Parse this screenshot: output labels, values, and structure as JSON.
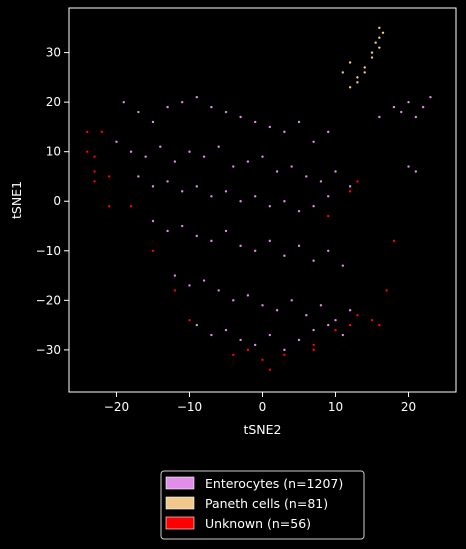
{
  "chart_data": {
    "type": "scatter",
    "xlabel": "tSNE2",
    "ylabel": "tSNE1",
    "xlim": [
      -26.5,
      26.5
    ],
    "ylim": [
      -38.5,
      39
    ],
    "x_ticks": [
      -20,
      -10,
      0,
      10,
      20
    ],
    "y_ticks": [
      -30,
      -20,
      -10,
      0,
      10,
      20,
      30
    ],
    "x_tick_labels": [
      "−20",
      "−10",
      "0",
      "10",
      "20"
    ],
    "y_tick_labels": [
      "−30",
      "−20",
      "−10",
      "0",
      "10",
      "20",
      "30"
    ],
    "grid": false,
    "legend_position": "below",
    "series": [
      {
        "name": "Enterocytes (n=1207)",
        "color": "#e08fe8",
        "count": 1207,
        "points": [
          [
            -19,
            20
          ],
          [
            -17,
            18
          ],
          [
            -15,
            16
          ],
          [
            -13,
            19
          ],
          [
            -11,
            20
          ],
          [
            -9,
            21
          ],
          [
            -7,
            19
          ],
          [
            -5,
            18
          ],
          [
            -3,
            17
          ],
          [
            -1,
            16
          ],
          [
            1,
            15
          ],
          [
            3,
            14
          ],
          [
            5,
            16
          ],
          [
            7,
            12
          ],
          [
            9,
            14
          ],
          [
            -20,
            12
          ],
          [
            -18,
            10
          ],
          [
            -16,
            9
          ],
          [
            -14,
            11
          ],
          [
            -12,
            8
          ],
          [
            -10,
            10
          ],
          [
            -8,
            9
          ],
          [
            -6,
            11
          ],
          [
            -4,
            7
          ],
          [
            -2,
            8
          ],
          [
            0,
            9
          ],
          [
            2,
            6
          ],
          [
            4,
            7
          ],
          [
            6,
            5
          ],
          [
            8,
            4
          ],
          [
            10,
            6
          ],
          [
            12,
            3
          ],
          [
            -17,
            5
          ],
          [
            -15,
            3
          ],
          [
            -13,
            4
          ],
          [
            -11,
            2
          ],
          [
            -9,
            3
          ],
          [
            -7,
            1
          ],
          [
            -5,
            2
          ],
          [
            -3,
            0
          ],
          [
            -1,
            1
          ],
          [
            1,
            -1
          ],
          [
            3,
            0
          ],
          [
            5,
            -2
          ],
          [
            7,
            -1
          ],
          [
            9,
            1
          ],
          [
            -15,
            -4
          ],
          [
            -13,
            -6
          ],
          [
            -11,
            -5
          ],
          [
            -9,
            -7
          ],
          [
            -7,
            -8
          ],
          [
            -5,
            -6
          ],
          [
            -3,
            -9
          ],
          [
            -1,
            -10
          ],
          [
            1,
            -8
          ],
          [
            3,
            -11
          ],
          [
            5,
            -9
          ],
          [
            7,
            -12
          ],
          [
            9,
            -10
          ],
          [
            11,
            -13
          ],
          [
            -12,
            -15
          ],
          [
            -10,
            -17
          ],
          [
            -8,
            -16
          ],
          [
            -6,
            -18
          ],
          [
            -4,
            -20
          ],
          [
            -2,
            -19
          ],
          [
            0,
            -21
          ],
          [
            2,
            -22
          ],
          [
            4,
            -20
          ],
          [
            6,
            -23
          ],
          [
            8,
            -21
          ],
          [
            10,
            -24
          ],
          [
            12,
            -22
          ],
          [
            -9,
            -25
          ],
          [
            -7,
            -27
          ],
          [
            -5,
            -26
          ],
          [
            -3,
            -28
          ],
          [
            -1,
            -29
          ],
          [
            1,
            -27
          ],
          [
            3,
            -30
          ],
          [
            5,
            -28
          ],
          [
            7,
            -26
          ],
          [
            9,
            -25
          ],
          [
            11,
            -27
          ],
          [
            16,
            17
          ],
          [
            18,
            19
          ],
          [
            20,
            20
          ],
          [
            22,
            19
          ],
          [
            23,
            21
          ],
          [
            19,
            18
          ],
          [
            21,
            17
          ],
          [
            20,
            7
          ],
          [
            21,
            6
          ]
        ]
      },
      {
        "name": "Paneth cells (n=81)",
        "color": "#f0c88c",
        "count": 81,
        "points": [
          [
            11,
            26
          ],
          [
            12,
            28
          ],
          [
            13,
            25
          ],
          [
            14,
            27
          ],
          [
            15,
            29
          ],
          [
            16,
            31
          ],
          [
            16,
            33
          ],
          [
            16,
            35
          ],
          [
            15,
            30
          ],
          [
            13,
            24
          ],
          [
            12,
            23
          ],
          [
            14,
            26
          ],
          [
            16.5,
            34
          ],
          [
            15.5,
            32
          ]
        ]
      },
      {
        "name": "Unknown (n=56)",
        "color": "#ff0000",
        "count": 56,
        "points": [
          [
            -23,
            6
          ],
          [
            -23,
            4
          ],
          [
            -24,
            10
          ],
          [
            -24,
            14
          ],
          [
            -22,
            14
          ],
          [
            -21,
            -1
          ],
          [
            -18,
            -1
          ],
          [
            -15,
            -10
          ],
          [
            -12,
            -18
          ],
          [
            -10,
            -24
          ],
          [
            -4,
            -31
          ],
          [
            -2,
            -30
          ],
          [
            0,
            -32
          ],
          [
            1,
            -34
          ],
          [
            3,
            -31
          ],
          [
            7,
            -30
          ],
          [
            7,
            -29
          ],
          [
            10,
            -26
          ],
          [
            12,
            -25
          ],
          [
            13,
            -23
          ],
          [
            15,
            -24
          ],
          [
            16,
            -25
          ],
          [
            17,
            -18
          ],
          [
            9,
            -3
          ],
          [
            12,
            2
          ],
          [
            13,
            4
          ],
          [
            18,
            -8
          ],
          [
            -23,
            9
          ],
          [
            -21,
            5
          ]
        ]
      }
    ]
  }
}
